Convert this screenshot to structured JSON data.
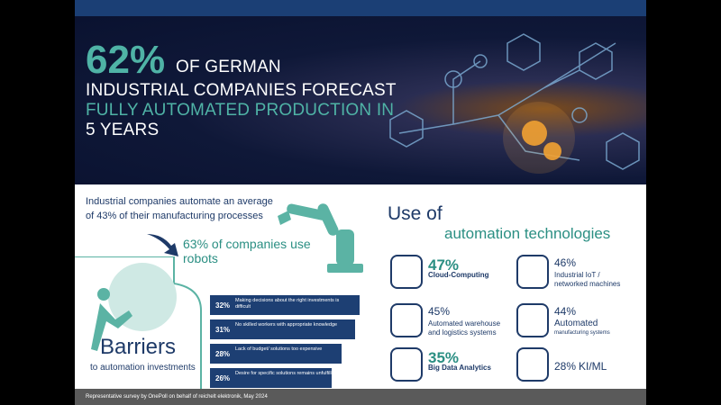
{
  "hero": {
    "percent": "62%",
    "lines": [
      "OF GERMAN",
      "INDUSTRIAL COMPANIES FORECAST",
      "FULLY AUTOMATED PRODUCTION IN",
      "5 YEARS"
    ]
  },
  "intro": {
    "lines": [
      "Industrial companies automate an average",
      "of 43% of their manufacturing processes"
    ]
  },
  "robots": {
    "lines": [
      "63% of companies use",
      "robots"
    ]
  },
  "barriers": {
    "title": "Barriers",
    "subtitle": "to automation investments",
    "items": [
      {
        "value": 32,
        "label": "32%",
        "text": "Making decisions about the right investments is difficult"
      },
      {
        "value": 31,
        "label": "31%",
        "text": "No skilled workers with appropriate knowledge"
      },
      {
        "value": 28,
        "label": "28%",
        "text": "Lack of budget/ solutions too expensive"
      },
      {
        "value": 26,
        "label": "26%",
        "text": "Desire for specific solutions remains unfulfilled"
      }
    ]
  },
  "technologies": {
    "title": "Use of",
    "subtitle": "automation technologies",
    "items": [
      {
        "percent": "47%",
        "lines": [
          "Cloud-Computing"
        ]
      },
      {
        "percent": "46%",
        "lines": [
          "Industrial IoT /",
          "networked machines"
        ]
      },
      {
        "percent": "45%",
        "lines": [
          "Automated warehouse",
          "and logistics systems"
        ]
      },
      {
        "percent": "44%",
        "lines": [
          "Automated",
          "manufacturing systems"
        ]
      },
      {
        "percent": "35%",
        "lines": [
          "Big Data Analytics"
        ]
      },
      {
        "percent": "28%",
        "lines": [
          "KI/ML"
        ]
      }
    ]
  },
  "footer": "Representative survey by OnePoll on behalf of reichelt elektronik, May 2024"
}
